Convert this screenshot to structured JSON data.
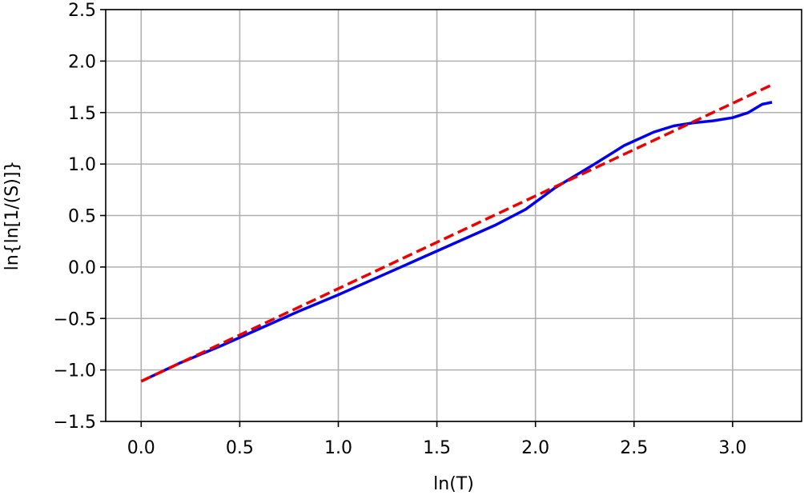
{
  "chart_data": {
    "type": "line",
    "title": "",
    "xlabel": "ln(T)",
    "ylabel": "ln{ln[1/(S)]}",
    "xlim": [
      -0.18,
      3.35
    ],
    "ylim": [
      -1.5,
      2.5
    ],
    "xticks": [
      0.0,
      0.5,
      1.0,
      1.5,
      2.0,
      2.5,
      3.0
    ],
    "xtick_labels": [
      "0.0",
      "0.5",
      "1.0",
      "1.5",
      "2.0",
      "2.5",
      "3.0"
    ],
    "yticks": [
      -1.5,
      -1.0,
      -0.5,
      0.0,
      0.5,
      1.0,
      1.5,
      2.0,
      2.5
    ],
    "ytick_labels": [
      "−1.5",
      "−1.0",
      "−0.5",
      "0.0",
      "0.5",
      "1.0",
      "1.5",
      "2.0",
      "2.5"
    ],
    "grid": true,
    "legend": "none",
    "series": [
      {
        "style": "solid",
        "color": "#0000ee",
        "x": [
          0.0,
          0.2,
          0.4,
          0.6,
          0.8,
          1.0,
          1.2,
          1.4,
          1.6,
          1.8,
          1.95,
          2.1,
          2.3,
          2.45,
          2.6,
          2.7,
          2.8,
          2.9,
          3.0,
          3.08,
          3.15,
          3.2
        ],
        "y": [
          -1.11,
          -0.93,
          -0.77,
          -0.6,
          -0.43,
          -0.27,
          -0.1,
          0.07,
          0.24,
          0.41,
          0.56,
          0.77,
          1.0,
          1.18,
          1.31,
          1.37,
          1.4,
          1.42,
          1.45,
          1.5,
          1.58,
          1.6
        ]
      },
      {
        "style": "dashed",
        "color": "#ee0000",
        "x": [
          0.0,
          3.2
        ],
        "y": [
          -1.11,
          1.77
        ]
      }
    ]
  }
}
